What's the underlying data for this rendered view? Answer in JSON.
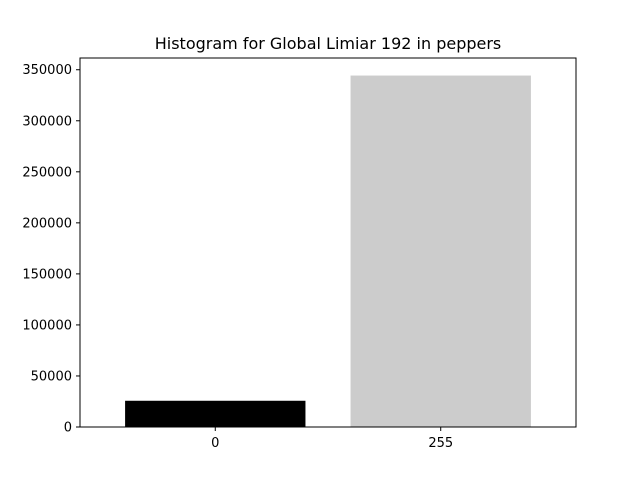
{
  "chart_data": {
    "type": "bar",
    "title": "Histogram for Global Limiar 192 in peppers",
    "xlabel": "",
    "ylabel": "",
    "categories": [
      "0",
      "255"
    ],
    "values": [
      25700,
      344300
    ],
    "bar_colors": [
      "#000000",
      "#cccccc"
    ],
    "ylim": [
      0,
      361500
    ],
    "yticks": [
      0,
      50000,
      100000,
      150000,
      200000,
      250000,
      300000,
      350000
    ],
    "ytick_labels": [
      "0",
      "50000",
      "100000",
      "150000",
      "200000",
      "250000",
      "300000",
      "350000"
    ],
    "grid": false,
    "legend": "none"
  }
}
